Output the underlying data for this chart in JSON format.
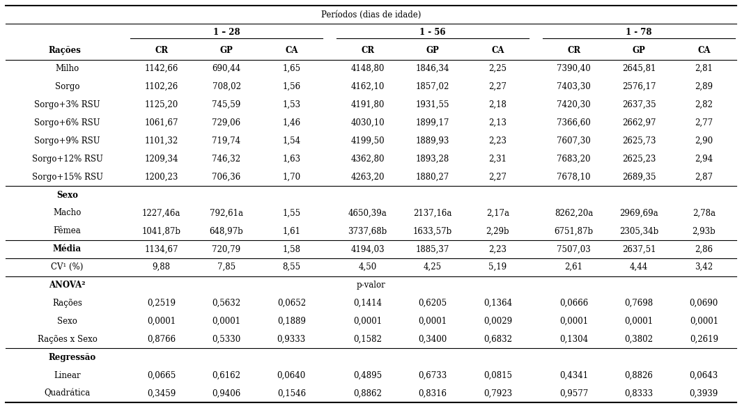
{
  "header1": "Períodos (dias de idade)",
  "period1": "1 – 28",
  "period2": "1 - 56",
  "period3": "1 - 78",
  "col_headers": [
    "CR",
    "GP",
    "CA"
  ],
  "row_label_col": "Rações",
  "rows": [
    {
      "label": "Milho",
      "indent": true,
      "p1": [
        "1142,66",
        "690,44",
        "1,65"
      ],
      "p2": [
        "4148,80",
        "1846,34",
        "2,25"
      ],
      "p3": [
        "7390,40",
        "2645,81",
        "2,81"
      ]
    },
    {
      "label": "Sorgo",
      "indent": true,
      "p1": [
        "1102,26",
        "708,02",
        "1,56"
      ],
      "p2": [
        "4162,10",
        "1857,02",
        "2,27"
      ],
      "p3": [
        "7403,30",
        "2576,17",
        "2,89"
      ]
    },
    {
      "label": "Sorgo+3% RSU",
      "indent": false,
      "p1": [
        "1125,20",
        "745,59",
        "1,53"
      ],
      "p2": [
        "4191,80",
        "1931,55",
        "2,18"
      ],
      "p3": [
        "7420,30",
        "2637,35",
        "2,82"
      ]
    },
    {
      "label": "Sorgo+6% RSU",
      "indent": false,
      "p1": [
        "1061,67",
        "729,06",
        "1,46"
      ],
      "p2": [
        "4030,10",
        "1899,17",
        "2,13"
      ],
      "p3": [
        "7366,60",
        "2662,97",
        "2,77"
      ]
    },
    {
      "label": "Sorgo+9% RSU",
      "indent": false,
      "p1": [
        "1101,32",
        "719,74",
        "1,54"
      ],
      "p2": [
        "4199,50",
        "1889,93",
        "2,23"
      ],
      "p3": [
        "7607,30",
        "2625,73",
        "2,90"
      ]
    },
    {
      "label": "Sorgo+12% RSU",
      "indent": false,
      "p1": [
        "1209,34",
        "746,32",
        "1,63"
      ],
      "p2": [
        "4362,80",
        "1893,28",
        "2,31"
      ],
      "p3": [
        "7683,20",
        "2625,23",
        "2,94"
      ]
    },
    {
      "label": "Sorgo+15% RSU",
      "indent": false,
      "p1": [
        "1200,23",
        "706,36",
        "1,70"
      ],
      "p2": [
        "4263,20",
        "1880,27",
        "2,27"
      ],
      "p3": [
        "7678,10",
        "2689,35",
        "2,87"
      ]
    }
  ],
  "sexo_rows": [
    {
      "label": "Macho",
      "p1": [
        "1227,46a",
        "792,61a",
        "1,55"
      ],
      "p2": [
        "4650,39a",
        "2137,16a",
        "2,17a"
      ],
      "p3": [
        "8262,20a",
        "2969,69a",
        "2,78a"
      ]
    },
    {
      "label": "Fêmea",
      "p1": [
        "1041,87b",
        "648,97b",
        "1,61"
      ],
      "p2": [
        "3737,68b",
        "1633,57b",
        "2,29b"
      ],
      "p3": [
        "6751,87b",
        "2305,34b",
        "2,93b"
      ]
    }
  ],
  "media_row": {
    "label": "Média",
    "p1": [
      "1134,67",
      "720,79",
      "1,58"
    ],
    "p2": [
      "4194,03",
      "1885,37",
      "2,23"
    ],
    "p3": [
      "7507,03",
      "2637,51",
      "2,86"
    ]
  },
  "cv_row": {
    "label": "CV¹ (%)",
    "p1": [
      "9,88",
      "7,85",
      "8,55"
    ],
    "p2": [
      "4,50",
      "4,25",
      "5,19"
    ],
    "p3": [
      "2,61",
      "4,44",
      "3,42"
    ]
  },
  "anova_rows": [
    {
      "label": "Rações",
      "p1": [
        "0,2519",
        "0,5632",
        "0,0652"
      ],
      "p2": [
        "0,1414",
        "0,6205",
        "0,1364"
      ],
      "p3": [
        "0,0666",
        "0,7698",
        "0,0690"
      ]
    },
    {
      "label": "Sexo",
      "p1": [
        "0,0001",
        "0,0001",
        "0,1889"
      ],
      "p2": [
        "0,0001",
        "0,0001",
        "0,0029"
      ],
      "p3": [
        "0,0001",
        "0,0001",
        "0,0001"
      ]
    },
    {
      "label": "Rações x Sexo",
      "p1": [
        "0,8766",
        "0,5330",
        "0,9333"
      ],
      "p2": [
        "0,1582",
        "0,3400",
        "0,6832"
      ],
      "p3": [
        "0,1304",
        "0,3802",
        "0,2619"
      ]
    }
  ],
  "regressao_rows": [
    {
      "label": "Linear",
      "p1": [
        "0,0665",
        "0,6162",
        "0,0640"
      ],
      "p2": [
        "0,4895",
        "0,6733",
        "0,0815"
      ],
      "p3": [
        "0,4341",
        "0,8826",
        "0,0643"
      ]
    },
    {
      "label": "Quadrática",
      "p1": [
        "0,3459",
        "0,9406",
        "0,1546"
      ],
      "p2": [
        "0,8862",
        "0,8316",
        "0,7923"
      ],
      "p3": [
        "0,9577",
        "0,8333",
        "0,3939"
      ]
    }
  ]
}
